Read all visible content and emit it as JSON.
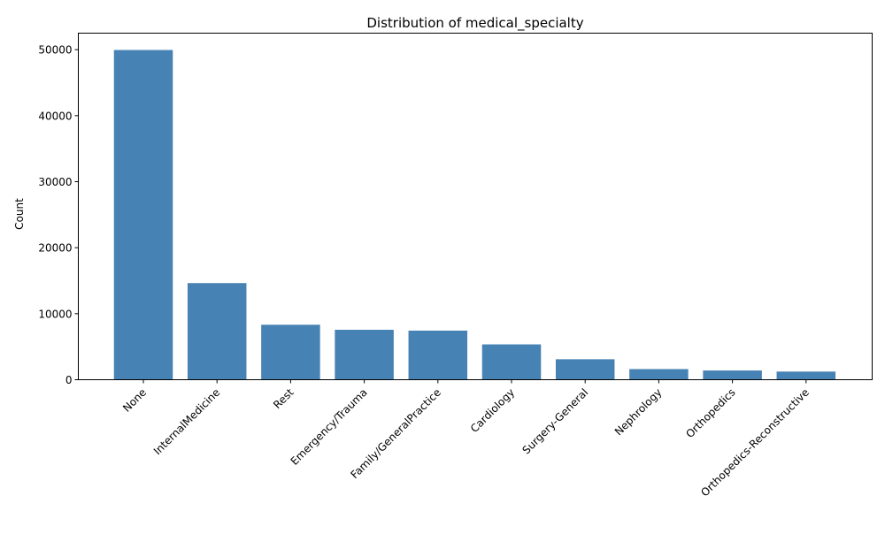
{
  "chart_data": {
    "type": "bar",
    "title": "Distribution of medical_specialty",
    "xlabel": "",
    "ylabel": "Count",
    "categories": [
      "None",
      "InternalMedicine",
      "Rest",
      "Emergency/Trauma",
      "Family/GeneralPractice",
      "Cardiology",
      "Surgery-General",
      "Nephrology",
      "Orthopedics",
      "Orthopedics-Reconstructive"
    ],
    "values": [
      49949,
      14635,
      8330,
      7565,
      7440,
      5352,
      3099,
      1613,
      1400,
      1233
    ],
    "ylim": [
      0,
      52500
    ],
    "yticks": [
      0,
      10000,
      20000,
      30000,
      40000,
      50000
    ],
    "ytick_labels": [
      "0",
      "10000",
      "20000",
      "30000",
      "40000",
      "50000"
    ],
    "grid": false,
    "legend": "none",
    "colors": {
      "bar": "#4682b4"
    }
  }
}
